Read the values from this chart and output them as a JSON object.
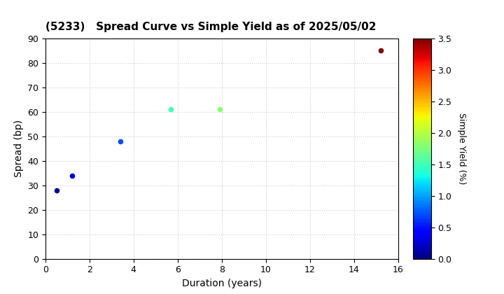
{
  "title": "(5233)   Spread Curve vs Simple Yield as of 2025/05/02",
  "xlabel": "Duration (years)",
  "ylabel": "Spread (bp)",
  "points": [
    {
      "duration": 0.5,
      "spread": 28,
      "simple_yield": 0.05
    },
    {
      "duration": 1.2,
      "spread": 34,
      "simple_yield": 0.3
    },
    {
      "duration": 3.4,
      "spread": 48,
      "simple_yield": 0.7
    },
    {
      "duration": 5.7,
      "spread": 61,
      "simple_yield": 1.5
    },
    {
      "duration": 7.9,
      "spread": 61,
      "simple_yield": 1.8
    },
    {
      "duration": 15.2,
      "spread": 85,
      "simple_yield": 3.5
    }
  ],
  "xlim": [
    0,
    16
  ],
  "ylim": [
    0,
    90
  ],
  "xticks": [
    0,
    2,
    4,
    6,
    8,
    10,
    12,
    14,
    16
  ],
  "yticks": [
    0,
    10,
    20,
    30,
    40,
    50,
    60,
    70,
    80,
    90
  ],
  "colorbar_label": "Simple Yield (%)",
  "colorbar_vmin": 0.0,
  "colorbar_vmax": 3.5,
  "colorbar_ticks": [
    0.0,
    0.5,
    1.0,
    1.5,
    2.0,
    2.5,
    3.0,
    3.5
  ],
  "colormap": "jet",
  "marker_size": 20,
  "background_color": "#ffffff",
  "grid_color": "#cccccc",
  "title_fontsize": 11,
  "axis_label_fontsize": 10,
  "tick_fontsize": 9
}
